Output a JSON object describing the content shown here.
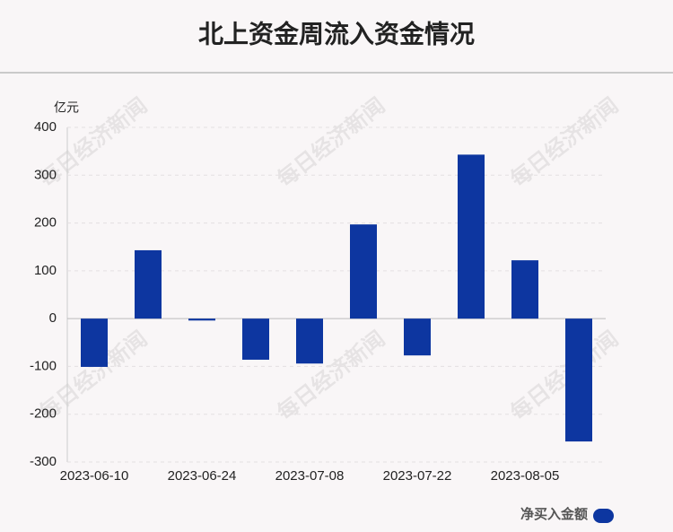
{
  "chart_data": {
    "type": "bar",
    "title": "北上资金周流入资金情况",
    "y_unit": "亿元",
    "categories": [
      "2023-06-10",
      null,
      "2023-06-24",
      null,
      "2023-07-08",
      null,
      "2023-07-22",
      null,
      "2023-08-05",
      null
    ],
    "series": [
      {
        "name": "净买入金额",
        "color": "#0d36a0",
        "values": [
          -101,
          143,
          -4,
          -86,
          -94,
          197,
          -77,
          343,
          122,
          -257
        ]
      }
    ],
    "ylim": [
      -300,
      400
    ],
    "yticks": [
      -300,
      -200,
      -100,
      0,
      100,
      200,
      300,
      400
    ],
    "grid": true,
    "legend": "bottom-right",
    "watermark": "每日经济新闻"
  }
}
